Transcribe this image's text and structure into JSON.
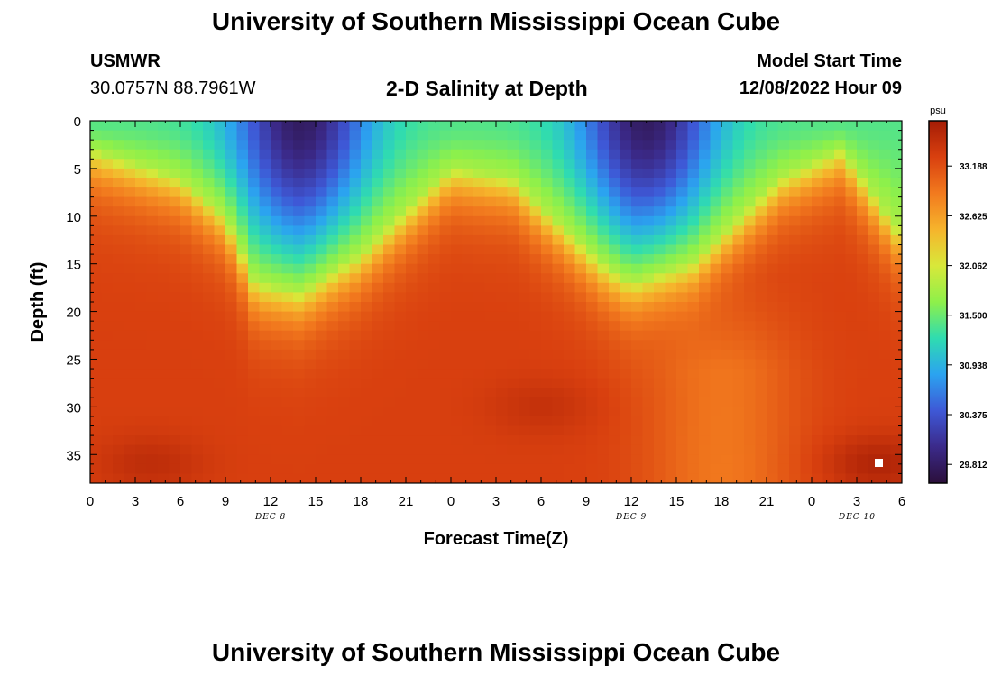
{
  "header": {
    "title": "University of Southern Mississippi Ocean Cube",
    "station": "USMWR",
    "coordinates": "30.0757N  88.7961W",
    "plot_title": "2-D Salinity at Depth",
    "model_start_label": "Model Start Time",
    "model_start_value": "12/08/2022 Hour 09"
  },
  "footer": {
    "title": "University of Southern Mississippi Ocean Cube"
  },
  "colorbar": {
    "unit": "psu",
    "ticks": [
      "33.188",
      "32.625",
      "32.062",
      "31.500",
      "30.938",
      "30.375",
      "29.812"
    ],
    "colors": [
      "#2b0f3a",
      "#3b2a8a",
      "#3e58d6",
      "#2ba3f0",
      "#2fdcb0",
      "#8ef04a",
      "#d8e83a",
      "#f6b42c",
      "#f27a1e",
      "#d9400f",
      "#a41c05"
    ]
  },
  "chart_data": {
    "type": "heatmap",
    "title": "2-D Salinity at Depth",
    "xlabel": "Forecast Time(Z)",
    "ylabel": "Depth (ft)",
    "x_tick_labels": [
      "0",
      "3",
      "6",
      "9",
      "12",
      "15",
      "18",
      "21",
      "0",
      "3",
      "6",
      "9",
      "12",
      "15",
      "18",
      "21",
      "0",
      "3",
      "6"
    ],
    "date_labels": [
      "DEC 8",
      "DEC 9",
      "DEC 10"
    ],
    "y_tick_labels": [
      "0",
      "5",
      "10",
      "15",
      "20",
      "25",
      "30",
      "35"
    ],
    "x_range_hours": [
      0,
      54
    ],
    "y_range_ft": [
      0,
      38
    ],
    "value_range_psu": [
      29.6,
      33.7
    ],
    "colorbar_ticks_psu": [
      33.188,
      32.625,
      32.062,
      31.5,
      30.938,
      30.375,
      29.812
    ],
    "fresh_layer_depth_ft": {
      "hours": [
        0,
        6,
        9,
        11,
        14,
        18,
        24,
        28,
        34,
        36,
        40,
        46,
        50,
        54
      ],
      "depth": [
        3,
        6,
        10,
        17,
        18,
        14,
        5,
        6,
        15,
        17,
        15,
        6,
        3,
        12
      ]
    },
    "min_salinity_cores": [
      {
        "hour": 14,
        "depth_ft": 0,
        "psu": 29.7
      },
      {
        "hour": 37,
        "depth_ft": 0,
        "psu": 29.8
      }
    ],
    "max_salinity_cores": [
      {
        "hour": 4,
        "depth_ft": 36,
        "psu": 33.5
      },
      {
        "hour": 30,
        "depth_ft": 30,
        "psu": 33.45
      },
      {
        "hour": 52.5,
        "depth_ft": 36,
        "psu": 33.6
      }
    ],
    "bottom_salinity_psu": 33.3,
    "mid_layer_psu": {
      "hours": [
        38,
        46
      ],
      "depth_ft": [
        22,
        28
      ],
      "psu": 32.75
    },
    "grid": false,
    "legend": "right"
  }
}
